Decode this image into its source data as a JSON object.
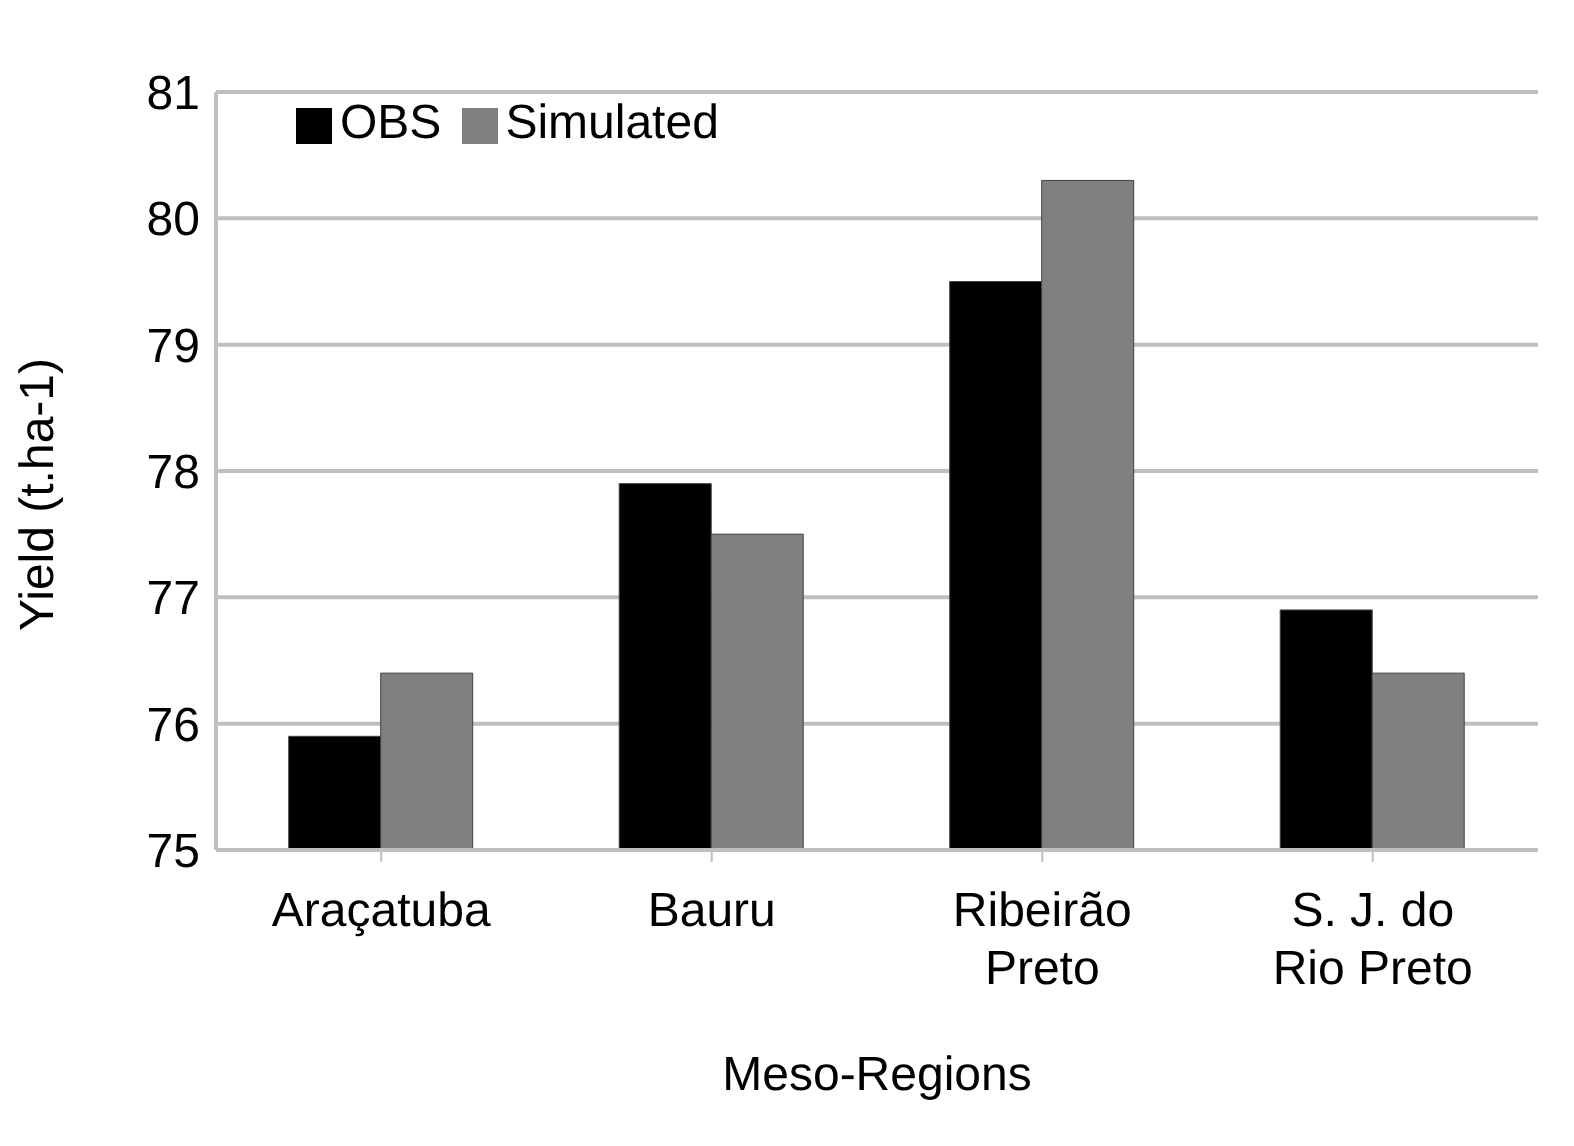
{
  "chart_data": {
    "type": "bar",
    "xlabel": "Meso-Regions",
    "ylabel": "Yield (t.ha-1)",
    "categories": [
      "Araçatuba",
      "Bauru",
      "Ribeirão Preto",
      "S. J. do Rio Preto"
    ],
    "series": [
      {
        "name": "OBS",
        "color": "#000000",
        "values": [
          75.9,
          77.9,
          79.5,
          76.9
        ]
      },
      {
        "name": "Simulated",
        "color": "#808080",
        "values": [
          76.4,
          77.5,
          80.3,
          76.4
        ]
      }
    ],
    "ylim": [
      75,
      81
    ],
    "yticks": [
      75,
      76,
      77,
      78,
      79,
      80,
      81
    ],
    "grid": "y",
    "legend": "top left"
  }
}
